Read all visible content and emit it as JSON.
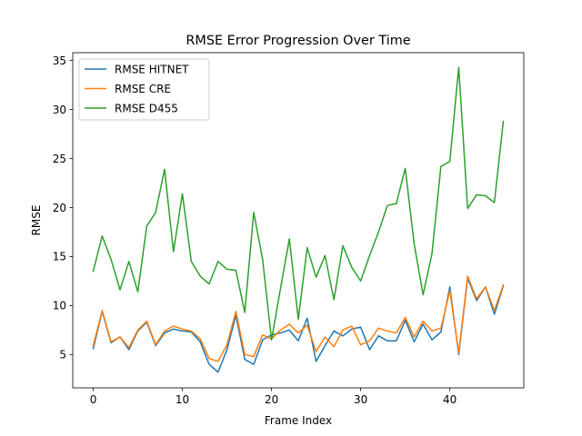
{
  "chart_data": {
    "type": "line",
    "title": "RMSE Error Progression Over Time",
    "xlabel": "Frame Index",
    "ylabel": "RMSE",
    "xlim": [
      -2.3,
      48.3
    ],
    "ylim": [
      1.6,
      35.8
    ],
    "xticks": [
      0,
      10,
      20,
      30,
      40
    ],
    "yticks": [
      5,
      10,
      15,
      20,
      25,
      30,
      35
    ],
    "grid": false,
    "legend": "top-left",
    "x": [
      0,
      1,
      2,
      3,
      4,
      5,
      6,
      7,
      8,
      9,
      10,
      11,
      12,
      13,
      14,
      15,
      16,
      17,
      18,
      19,
      20,
      21,
      22,
      23,
      24,
      25,
      26,
      27,
      28,
      29,
      30,
      31,
      32,
      33,
      34,
      35,
      36,
      37,
      38,
      39,
      40,
      41,
      42,
      43,
      44,
      45,
      46
    ],
    "series": [
      {
        "name": "RMSE HITNET",
        "color": "#1f77b4",
        "values": [
          5.6,
          9.4,
          6.2,
          6.8,
          5.5,
          7.4,
          8.3,
          5.9,
          7.2,
          7.6,
          7.4,
          7.3,
          6.3,
          4.0,
          3.2,
          5.5,
          9.0,
          4.5,
          4.0,
          6.5,
          7.0,
          7.2,
          7.5,
          6.4,
          8.7,
          4.3,
          5.9,
          7.4,
          6.9,
          7.6,
          7.8,
          5.5,
          6.9,
          6.4,
          6.4,
          8.5,
          6.3,
          8.1,
          6.5,
          7.3,
          11.9,
          5.0,
          12.8,
          10.5,
          11.9,
          9.1,
          12.0
        ]
      },
      {
        "name": "RMSE CRE",
        "color": "#ff7f0e",
        "values": [
          5.9,
          9.5,
          6.3,
          6.8,
          5.7,
          7.5,
          8.4,
          6.0,
          7.4,
          7.9,
          7.6,
          7.4,
          6.6,
          4.6,
          4.3,
          6.0,
          9.4,
          5.0,
          4.8,
          7.0,
          6.6,
          7.5,
          8.1,
          7.2,
          8.0,
          5.3,
          6.8,
          5.8,
          7.5,
          7.9,
          6.0,
          6.4,
          7.7,
          7.4,
          7.2,
          8.8,
          6.8,
          8.4,
          7.4,
          7.7,
          11.5,
          5.2,
          13.0,
          10.7,
          11.9,
          9.5,
          12.1
        ]
      },
      {
        "name": "RMSE D455",
        "color": "#2ca02c",
        "values": [
          13.5,
          17.1,
          14.7,
          11.6,
          14.5,
          11.4,
          18.1,
          19.5,
          23.9,
          15.5,
          21.4,
          14.5,
          13.0,
          12.2,
          14.5,
          13.7,
          13.6,
          9.3,
          19.5,
          14.7,
          6.5,
          11.7,
          16.8,
          8.6,
          15.9,
          12.9,
          15.1,
          10.6,
          16.1,
          13.9,
          12.5,
          15.1,
          17.5,
          20.2,
          20.4,
          24.0,
          16.3,
          11.1,
          15.3,
          24.2,
          24.7,
          34.3,
          19.9,
          21.3,
          21.2,
          20.5,
          28.8
        ]
      }
    ]
  }
}
